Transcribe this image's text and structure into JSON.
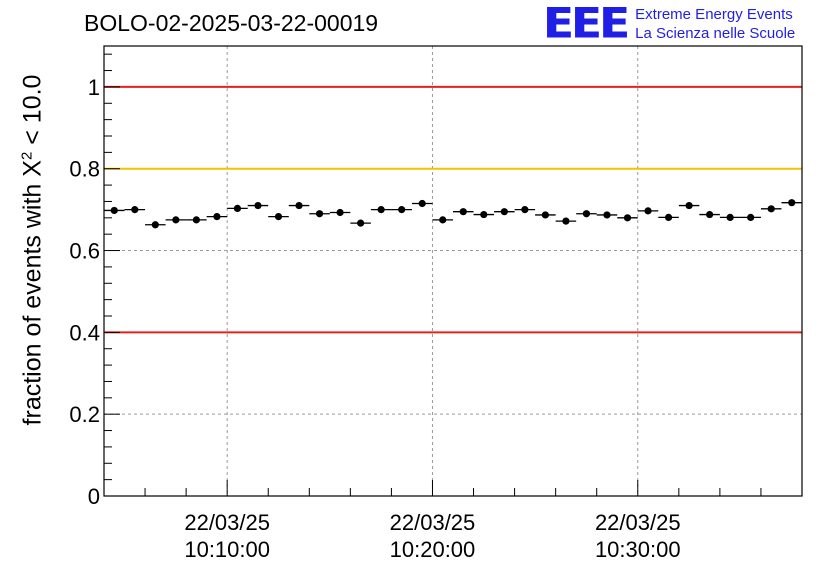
{
  "header": {
    "title": "BOLO-02-2025-03-22-00019",
    "logo_mark": "EEE",
    "logo_line1": "Extreme Energy Events",
    "logo_line2": "La Scienza nelle Scuole"
  },
  "chart_data": {
    "type": "scatter",
    "title": "BOLO-02-2025-03-22-00019",
    "ylabel_prefix": "fraction of events with X",
    "ylabel_sup": "2",
    "ylabel_suffix": " < 10.0",
    "xlabel": "",
    "ylim": [
      0,
      1.1
    ],
    "yticks": [
      0,
      0.2,
      0.4,
      0.6,
      0.8,
      1
    ],
    "ytick_labels": [
      "0",
      "0.2",
      "0.4",
      "0.6",
      "0.8",
      "1"
    ],
    "x_unit": "minutes since 10:04:00",
    "xlim": [
      0,
      34
    ],
    "xticks": [
      6,
      16,
      26
    ],
    "xtick_labels": [
      [
        "22/03/25",
        "10:10:00"
      ],
      [
        "22/03/25",
        "10:20:00"
      ],
      [
        "22/03/25",
        "10:30:00"
      ]
    ],
    "bin_width_min": 1,
    "grid": true,
    "reference_lines": [
      {
        "y": 1.0,
        "color": "#e8201a"
      },
      {
        "y": 0.8,
        "color": "#f5c200"
      },
      {
        "y": 0.4,
        "color": "#e8201a"
      }
    ],
    "series": [
      {
        "name": "fraction",
        "x": [
          0.5,
          1.5,
          2.5,
          3.5,
          4.5,
          5.5,
          6.5,
          7.5,
          8.5,
          9.5,
          10.5,
          11.5,
          12.5,
          13.5,
          14.5,
          15.5,
          16.5,
          17.5,
          18.5,
          19.5,
          20.5,
          21.5,
          22.5,
          23.5,
          24.5,
          25.5,
          26.5,
          27.5,
          28.5,
          29.5,
          30.5,
          31.5,
          32.5,
          33.5
        ],
        "values": [
          0.698,
          0.7,
          0.663,
          0.675,
          0.675,
          0.683,
          0.703,
          0.71,
          0.683,
          0.71,
          0.69,
          0.693,
          0.667,
          0.7,
          0.7,
          0.715,
          0.675,
          0.695,
          0.688,
          0.695,
          0.7,
          0.687,
          0.672,
          0.69,
          0.687,
          0.68,
          0.697,
          0.681,
          0.71,
          0.688,
          0.681,
          0.681,
          0.702,
          0.717
        ],
        "errors": [
          0.008,
          0.008,
          0.008,
          0.008,
          0.008,
          0.008,
          0.008,
          0.008,
          0.008,
          0.008,
          0.008,
          0.008,
          0.008,
          0.008,
          0.008,
          0.008,
          0.008,
          0.008,
          0.008,
          0.008,
          0.008,
          0.008,
          0.008,
          0.008,
          0.008,
          0.008,
          0.008,
          0.008,
          0.008,
          0.008,
          0.008,
          0.008,
          0.008,
          0.008
        ]
      }
    ]
  }
}
